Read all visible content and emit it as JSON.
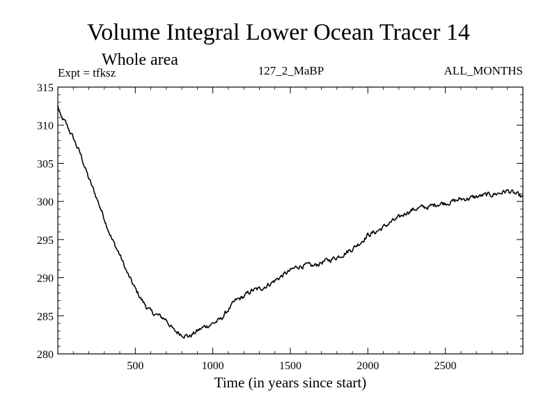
{
  "chart_data": {
    "type": "line",
    "title": "Volume Integral Lower Ocean Tracer 14",
    "subtitle": "Whole area",
    "experiment_label": "Expt = tfksz",
    "center_label": "127_2_MaBP",
    "right_label": "ALL_MONTHS",
    "xlabel": "Time (in years since start)",
    "ylabel": "",
    "xlim": [
      0,
      3000
    ],
    "ylim": [
      280,
      315
    ],
    "x_ticks": [
      500,
      1000,
      1500,
      2000,
      2500
    ],
    "x_tick_labels": [
      "500",
      "1000",
      "1500",
      "2000",
      "2500"
    ],
    "y_ticks": [
      280,
      285,
      290,
      295,
      300,
      305,
      310,
      315
    ],
    "y_tick_labels": [
      "280",
      "285",
      "290",
      "295",
      "300",
      "305",
      "310",
      "315"
    ],
    "grid": false,
    "line_color": "#000000",
    "series": [
      {
        "name": "Tracer 14",
        "x": [
          0,
          20,
          50,
          100,
          150,
          200,
          250,
          300,
          350,
          400,
          450,
          500,
          550,
          600,
          650,
          700,
          750,
          800,
          850,
          900,
          950,
          1000,
          1050,
          1100,
          1150,
          1200,
          1250,
          1300,
          1350,
          1400,
          1450,
          1500,
          1550,
          1600,
          1650,
          1700,
          1750,
          1800,
          1850,
          1900,
          1950,
          2000,
          2050,
          2100,
          2150,
          2200,
          2250,
          2300,
          2350,
          2400,
          2450,
          2500,
          2550,
          2600,
          2650,
          2700,
          2750,
          2800,
          2850,
          2900,
          2950,
          3000
        ],
        "y": [
          312.5,
          311.0,
          310.3,
          308.3,
          306.0,
          303.0,
          300.5,
          297.8,
          295.0,
          293.0,
          290.5,
          288.5,
          286.8,
          285.5,
          285.0,
          284.5,
          283.0,
          282.6,
          282.3,
          283.0,
          283.6,
          284.0,
          284.5,
          285.8,
          287.0,
          287.5,
          288.3,
          288.5,
          289.0,
          289.6,
          290.3,
          290.9,
          291.5,
          291.6,
          291.5,
          292.0,
          292.3,
          292.7,
          293.2,
          293.8,
          294.6,
          295.6,
          296.0,
          296.6,
          297.3,
          297.8,
          298.6,
          299.0,
          299.2,
          299.3,
          299.7,
          299.8,
          300.0,
          300.3,
          300.4,
          300.6,
          300.8,
          300.9,
          301.1,
          301.4,
          301.0,
          300.5
        ]
      }
    ]
  }
}
